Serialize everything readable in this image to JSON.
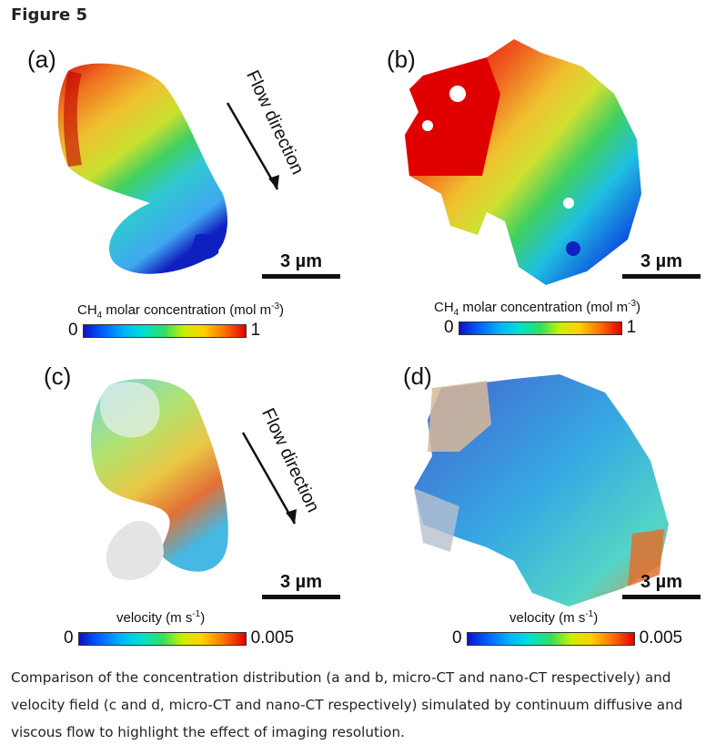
{
  "figure": {
    "title": "Figure 5",
    "panels": {
      "a": {
        "label": "(a)",
        "flow": "Flow direction",
        "scale": "3 µm"
      },
      "b": {
        "label": "(b)",
        "scale": "3 µm"
      },
      "c": {
        "label": "(c)",
        "flow": "Flow direction",
        "scale": "3 µm"
      },
      "d": {
        "label": "(d)",
        "scale": "3 µm"
      }
    },
    "colorbars": {
      "concentration": {
        "title_pre": "CH",
        "title_sub": "4",
        "title_mid": " molar concentration (mol m",
        "title_sup": "-3",
        "title_post": ")",
        "min": "0",
        "max": "1"
      },
      "velocity": {
        "title_pre": "velocity (m s",
        "title_sup": "-1",
        "title_post": ")",
        "min": "0",
        "max": "0.005"
      }
    },
    "caption": "Comparison of the concentration distribution (a and b, micro-CT and nano-CT respectively) and velocity field (c and d, micro-CT and nano-CT respectively) simulated by continuum diffusive and viscous flow to highlight the effect of imaging resolution.",
    "colors": {
      "low": "#1010c8",
      "mid": "#30e060",
      "high": "#e00000"
    }
  }
}
